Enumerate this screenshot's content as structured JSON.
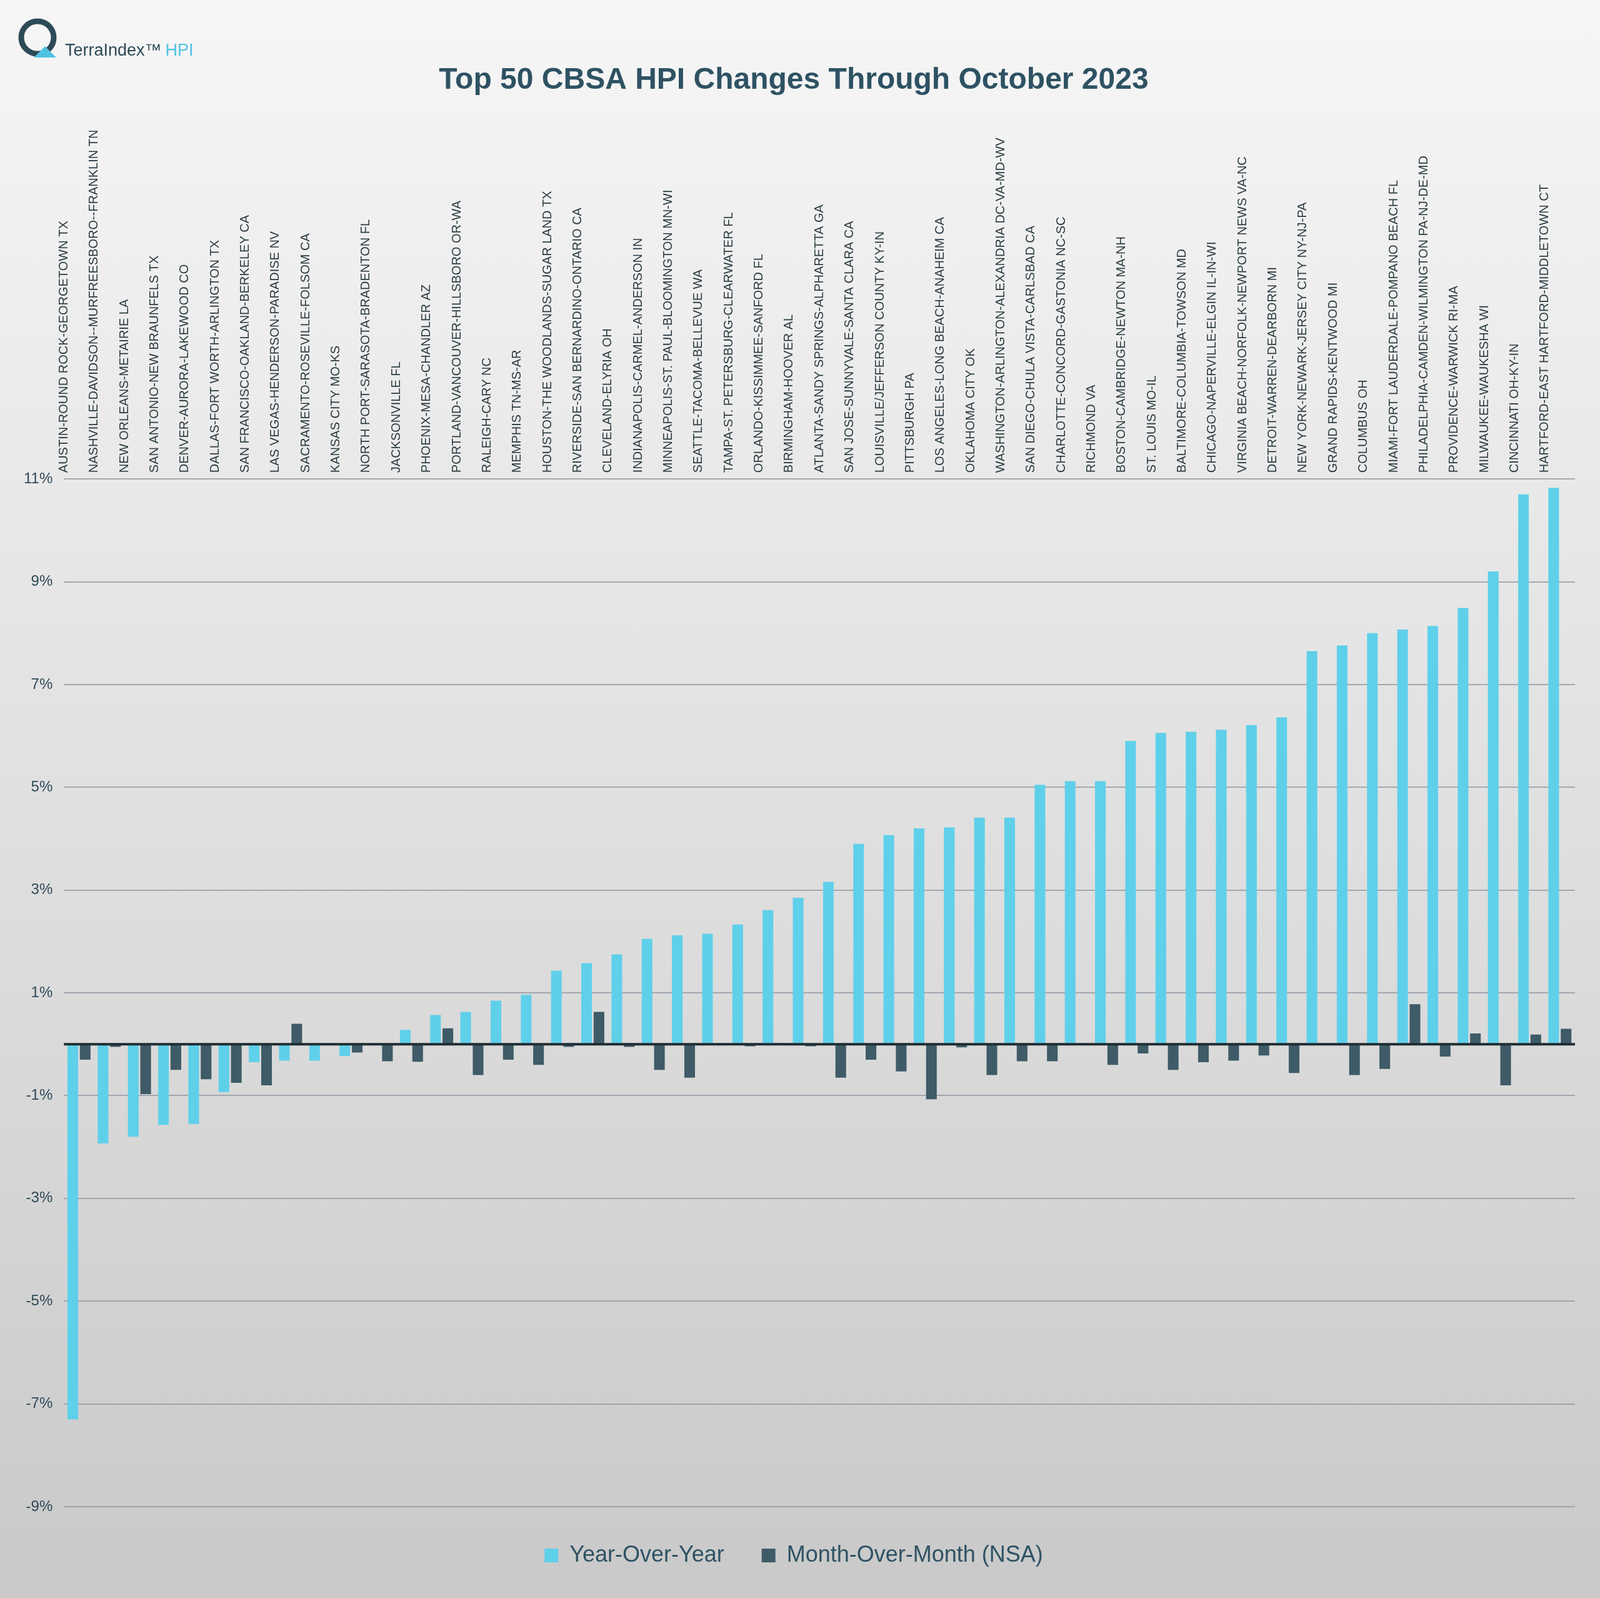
{
  "chart_data": {
    "type": "bar",
    "title": "Top 50 CBSA HPI Changes Through October 2023",
    "annotations": [
      {
        "text": "TerraIndex™ HPI"
      }
    ],
    "categories": [
      "AUSTIN-ROUND ROCK-GEORGETOWN TX",
      "NASHVILLE-DAVIDSON--MURFREESBORO--FRANKLIN TN",
      "NEW ORLEANS-METAIRIE LA",
      "SAN ANTONIO-NEW BRAUNFELS TX",
      "DENVER-AURORA-LAKEWOOD CO",
      "DALLAS-FORT WORTH-ARLINGTON TX",
      "SAN FRANCISCO-OAKLAND-BERKELEY CA",
      "LAS VEGAS-HENDERSON-PARADISE NV",
      "SACRAMENTO-ROSEVILLE-FOLSOM CA",
      "KANSAS CITY MO-KS",
      "NORTH PORT-SARASOTA-BRADENTON FL",
      "JACKSONVILLE FL",
      "PHOENIX-MESA-CHANDLER AZ",
      "PORTLAND-VANCOUVER-HILLSBORO OR-WA",
      "RALEIGH-CARY NC",
      "MEMPHIS TN-MS-AR",
      "HOUSTON-THE WOODLANDS-SUGAR LAND TX",
      "RIVERSIDE-SAN BERNARDINO-ONTARIO CA",
      "CLEVELAND-ELYRIA OH",
      "INDIANAPOLIS-CARMEL-ANDERSON IN",
      "MINNEAPOLIS-ST. PAUL-BLOOMINGTON MN-WI",
      "SEATTLE-TACOMA-BELLEVUE WA",
      "TAMPA-ST. PETERSBURG-CLEARWATER FL",
      "ORLANDO-KISSIMMEE-SANFORD FL",
      "BIRMINGHAM-HOOVER AL",
      "ATLANTA-SANDY SPRINGS-ALPHARETTA GA",
      "SAN JOSE-SUNNYVALE-SANTA CLARA CA",
      "LOUISVILLE/JEFFERSON COUNTY KY-IN",
      "PITTSBURGH PA",
      "LOS ANGELES-LONG BEACH-ANAHEIM CA",
      "OKLAHOMA CITY OK",
      "WASHINGTON-ARLINGTON-ALEXANDRIA DC-VA-MD-WV",
      "SAN DIEGO-CHULA VISTA-CARLSBAD CA",
      "CHARLOTTE-CONCORD-GASTONIA NC-SC",
      "RICHMOND VA",
      "BOSTON-CAMBRIDGE-NEWTON MA-NH",
      "ST. LOUIS MO-IL",
      "BALTIMORE-COLUMBIA-TOWSON MD",
      "CHICAGO-NAPERVILLE-ELGIN IL-IN-WI",
      "VIRGINIA BEACH-NORFOLK-NEWPORT NEWS VA-NC",
      "DETROIT-WARREN-DEARBORN MI",
      "NEW YORK-NEWARK-JERSEY CITY NY-NJ-PA",
      "GRAND RAPIDS-KENTWOOD MI",
      "COLUMBUS OH",
      "MIAMI-FORT LAUDERDALE-POMPANO BEACH FL",
      "PHILADELPHIA-CAMDEN-WILMINGTON PA-NJ-DE-MD",
      "PROVIDENCE-WARWICK RI-MA",
      "MILWAUKEE-WAUKESHA WI",
      "CINCINNATI OH-KY-IN",
      "HARTFORD-EAST HARTFORD-MIDDLETOWN CT"
    ],
    "series": [
      {
        "name": "Year-Over-Year",
        "color": "#5fd0ea",
        "values": [
          -7.3,
          -1.93,
          -1.8,
          -1.57,
          -1.55,
          -0.93,
          -0.35,
          -0.32,
          -0.32,
          -0.23,
          0.02,
          0.28,
          0.57,
          0.63,
          0.85,
          0.96,
          1.43,
          1.58,
          1.75,
          2.05,
          2.12,
          2.15,
          2.33,
          2.61,
          2.85,
          3.16,
          3.9,
          4.07,
          4.2,
          4.22,
          4.41,
          4.41,
          5.05,
          5.12,
          5.12,
          5.9,
          6.06,
          6.08,
          6.12,
          6.21,
          6.36,
          7.65,
          7.76,
          8.0,
          8.07,
          8.14,
          8.49,
          9.2,
          10.7,
          10.83
        ]
      },
      {
        "name": "Month-Over-Month (NSA)",
        "color": "#3e5b67",
        "values": [
          -0.3,
          -0.05,
          -0.97,
          -0.5,
          -0.68,
          -0.75,
          -0.8,
          0.4,
          -0.02,
          -0.16,
          -0.33,
          -0.34,
          0.31,
          -0.6,
          -0.3,
          -0.4,
          -0.05,
          0.63,
          -0.05,
          -0.5,
          -0.65,
          -0.02,
          -0.04,
          0.02,
          -0.04,
          -0.65,
          -0.3,
          -0.53,
          -1.07,
          -0.06,
          -0.6,
          -0.33,
          -0.33,
          -0.02,
          -0.4,
          -0.18,
          -0.5,
          -0.35,
          -0.32,
          -0.22,
          -0.56,
          -0.02,
          -0.6,
          -0.48,
          0.78,
          -0.24,
          0.21,
          -0.8,
          0.19,
          0.3
        ]
      }
    ],
    "ylim": [
      -9,
      11
    ],
    "yticks": [
      {
        "value": -9,
        "label": "-9%"
      },
      {
        "value": -7,
        "label": "-7%"
      },
      {
        "value": -5,
        "label": "-5%"
      },
      {
        "value": -3,
        "label": "-3%"
      },
      {
        "value": -1,
        "label": "-1%"
      },
      {
        "value": 1,
        "label": "1%"
      },
      {
        "value": 3,
        "label": "3%"
      },
      {
        "value": 5,
        "label": "5%"
      },
      {
        "value": 7,
        "label": "7%"
      },
      {
        "value": 9,
        "label": "9%"
      },
      {
        "value": 11,
        "label": "11%"
      }
    ],
    "grid": true,
    "legend": "bottom"
  }
}
